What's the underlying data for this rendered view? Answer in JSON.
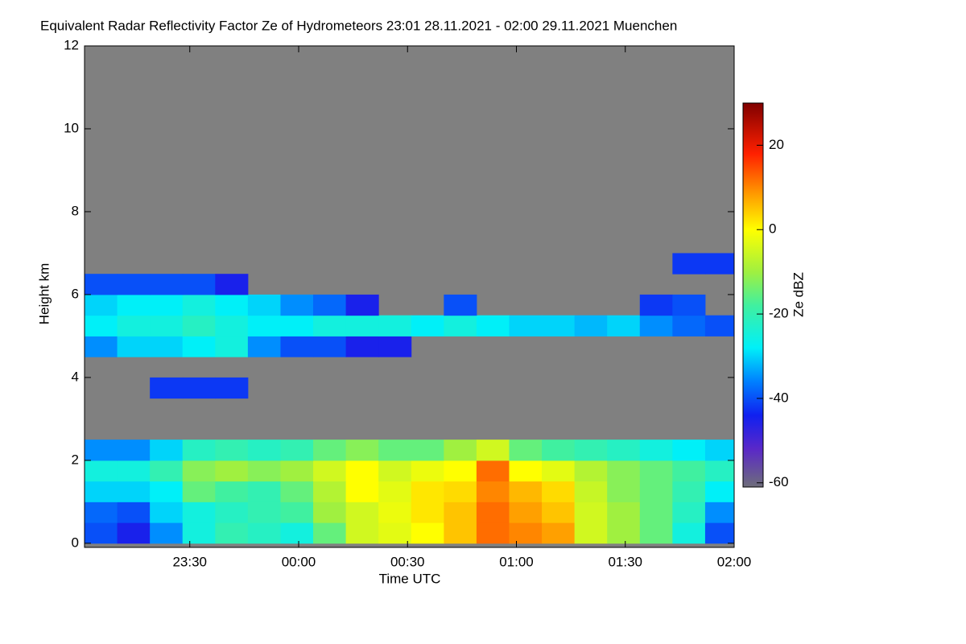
{
  "chart_data": {
    "type": "heatmap",
    "title": "Equivalent Radar Reflectivity Factor Ze of Hydrometeors   23:01 28.11.2021 - 02:00 29.11.2021 Muenchen",
    "x_label": "Time UTC",
    "y_label": "Height km",
    "colorbar_label": "Ze dBZ",
    "background": "#808080",
    "xlim": [
      -59,
      120
    ],
    "xticks": [
      {
        "value": -30,
        "label": "23:30"
      },
      {
        "value": 0,
        "label": "00:00"
      },
      {
        "value": 30,
        "label": "00:30"
      },
      {
        "value": 60,
        "label": "01:00"
      },
      {
        "value": 90,
        "label": "01:30"
      },
      {
        "value": 120,
        "label": "02:00"
      }
    ],
    "ylim": [
      -0.1,
      12
    ],
    "yticks": [
      0,
      2,
      4,
      6,
      8,
      10,
      12
    ],
    "zlim": [
      -61,
      30
    ],
    "zticks": [
      -60,
      -40,
      -20,
      0,
      20
    ],
    "colorscale": [
      {
        "value": -61,
        "color": "#6e6e7a"
      },
      {
        "value": -52,
        "color": "#5a28c8"
      },
      {
        "value": -44,
        "color": "#1020f0"
      },
      {
        "value": -36,
        "color": "#0080ff"
      },
      {
        "value": -28,
        "color": "#00f0f8"
      },
      {
        "value": -18,
        "color": "#40f0a0"
      },
      {
        "value": -10,
        "color": "#a0f040"
      },
      {
        "value": 0,
        "color": "#ffff00"
      },
      {
        "value": 8,
        "color": "#ffa000"
      },
      {
        "value": 18,
        "color": "#ff2000"
      },
      {
        "value": 30,
        "color": "#800000"
      }
    ],
    "x": [
      -54.5,
      -45.5,
      -36.5,
      -27.5,
      -18.5,
      -9.5,
      -0.5,
      8.5,
      17.5,
      26.5,
      35.5,
      44.5,
      53.5,
      62.5,
      71.5,
      80.5,
      89.5,
      98.5,
      107.5,
      116.5
    ],
    "y": [
      0.25,
      0.75,
      1.25,
      1.75,
      2.25,
      2.75,
      3.25,
      3.75,
      4.25,
      4.75,
      5.25,
      5.75,
      6.25,
      6.75
    ],
    "z": [
      [
        -40,
        -45,
        -35,
        -25,
        -20,
        -22,
        -25,
        -15,
        -5,
        -3,
        0,
        5,
        12,
        10,
        8,
        -5,
        -10,
        -15,
        -25,
        -40
      ],
      [
        -38,
        -40,
        -30,
        -25,
        -22,
        -20,
        -18,
        -10,
        -5,
        -2,
        2,
        5,
        12,
        8,
        5,
        -5,
        -10,
        -15,
        -22,
        -35
      ],
      [
        -30,
        -30,
        -28,
        -15,
        -18,
        -20,
        -15,
        -8,
        0,
        -3,
        2,
        3,
        10,
        6,
        3,
        -6,
        -12,
        -15,
        -20,
        -28
      ],
      [
        -25,
        -25,
        -20,
        -12,
        -10,
        -12,
        -10,
        -5,
        0,
        -5,
        -2,
        0,
        12,
        0,
        -3,
        -8,
        -12,
        -15,
        -18,
        -22
      ],
      [
        -35,
        -35,
        -30,
        -22,
        -20,
        -22,
        -20,
        -15,
        -12,
        -15,
        -15,
        -10,
        -5,
        -15,
        -18,
        -20,
        -22,
        -25,
        -28,
        -30
      ],
      [
        null,
        null,
        null,
        null,
        null,
        null,
        null,
        null,
        null,
        null,
        null,
        null,
        null,
        null,
        null,
        null,
        null,
        null,
        null,
        null
      ],
      [
        null,
        null,
        null,
        null,
        null,
        null,
        null,
        null,
        null,
        null,
        null,
        null,
        null,
        null,
        null,
        null,
        null,
        null,
        null,
        null
      ],
      [
        null,
        null,
        -42,
        -42,
        -42,
        null,
        null,
        null,
        null,
        null,
        null,
        null,
        null,
        null,
        null,
        null,
        null,
        null,
        null,
        null
      ],
      [
        null,
        null,
        null,
        null,
        null,
        null,
        null,
        null,
        null,
        null,
        null,
        null,
        null,
        null,
        null,
        null,
        null,
        null,
        null,
        null
      ],
      [
        -35,
        -30,
        -30,
        -28,
        -25,
        -35,
        -40,
        -40,
        -45,
        -45,
        null,
        null,
        null,
        null,
        null,
        null,
        null,
        null,
        null,
        null
      ],
      [
        -28,
        -25,
        -25,
        -22,
        -25,
        -28,
        -28,
        -25,
        -25,
        -25,
        -28,
        -25,
        -28,
        -30,
        -30,
        -32,
        -30,
        -35,
        -38,
        -40
      ],
      [
        -30,
        -28,
        -28,
        -25,
        -28,
        -30,
        -35,
        -38,
        -45,
        null,
        null,
        -40,
        null,
        null,
        null,
        null,
        null,
        -42,
        -40,
        null
      ],
      [
        -40,
        -40,
        -40,
        -40,
        -45,
        null,
        null,
        null,
        null,
        null,
        null,
        null,
        null,
        null,
        null,
        null,
        null,
        null,
        null,
        null
      ],
      [
        null,
        null,
        null,
        null,
        null,
        null,
        null,
        null,
        null,
        null,
        null,
        null,
        null,
        null,
        null,
        null,
        null,
        null,
        -42,
        -42
      ]
    ]
  }
}
